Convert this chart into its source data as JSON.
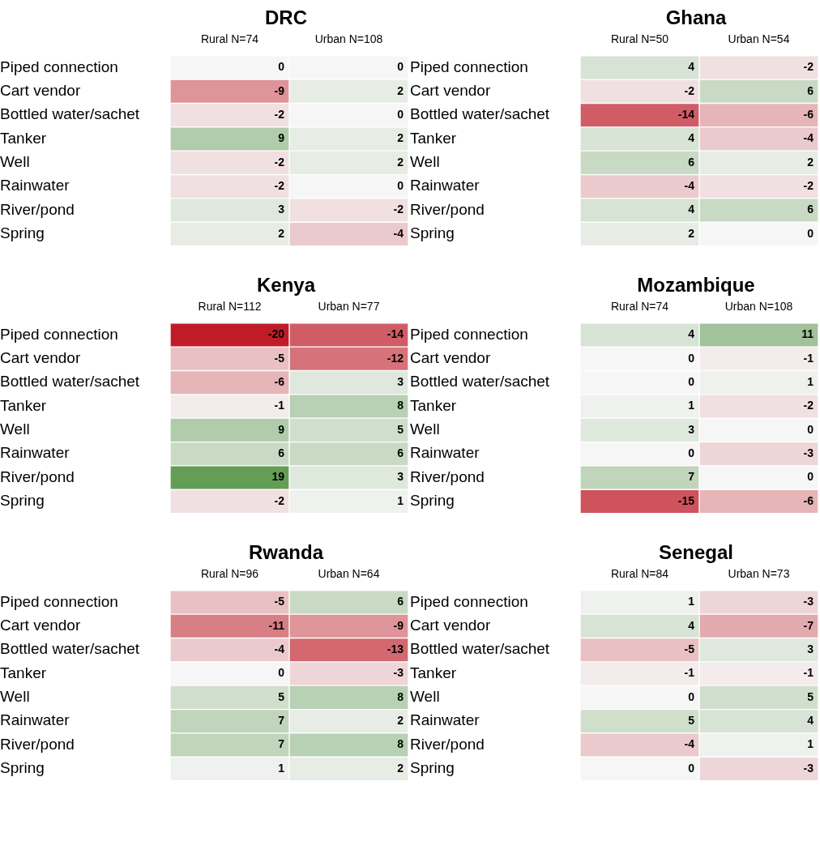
{
  "chart_data": [
    {
      "type": "heatmap",
      "title": "DRC",
      "categories": [
        "Rural N=74",
        "Urban N=108"
      ],
      "y_categories": [
        "Piped connection",
        "Cart vendor",
        "Bottled water/sachet",
        "Tanker",
        "Well",
        "Rainwater",
        "River/pond",
        "Spring"
      ],
      "cells": [
        [
          0,
          0
        ],
        [
          -9,
          2
        ],
        [
          -2,
          0
        ],
        [
          9,
          2
        ],
        [
          -2,
          2
        ],
        [
          -2,
          0
        ],
        [
          3,
          -2
        ],
        [
          2,
          -4
        ]
      ],
      "data_labels": true
    },
    {
      "type": "heatmap",
      "title": "Ghana",
      "categories": [
        "Rural N=50",
        "Urban N=54"
      ],
      "y_categories": [
        "Piped connection",
        "Cart vendor",
        "Bottled water/sachet",
        "Tanker",
        "Well",
        "Rainwater",
        "River/pond",
        "Spring"
      ],
      "cells": [
        [
          4,
          -2
        ],
        [
          -2,
          6
        ],
        [
          -14,
          -6
        ],
        [
          4,
          -4
        ],
        [
          6,
          2
        ],
        [
          -4,
          -2
        ],
        [
          4,
          6
        ],
        [
          2,
          0
        ]
      ],
      "data_labels": true
    },
    {
      "type": "heatmap",
      "title": "Kenya",
      "categories": [
        "Rural N=112",
        "Urban N=77"
      ],
      "y_categories": [
        "Piped connection",
        "Cart vendor",
        "Bottled water/sachet",
        "Tanker",
        "Well",
        "Rainwater",
        "River/pond",
        "Spring"
      ],
      "cells": [
        [
          -20,
          -14
        ],
        [
          -5,
          -12
        ],
        [
          -6,
          3
        ],
        [
          -1,
          8
        ],
        [
          9,
          5
        ],
        [
          6,
          6
        ],
        [
          19,
          3
        ],
        [
          -2,
          1
        ]
      ],
      "data_labels": true
    },
    {
      "type": "heatmap",
      "title": "Mozambique",
      "categories": [
        "Rural N=74",
        "Urban N=108"
      ],
      "y_categories": [
        "Piped connection",
        "Cart vendor",
        "Bottled water/sachet",
        "Tanker",
        "Well",
        "Rainwater",
        "River/pond",
        "Spring"
      ],
      "cells": [
        [
          4,
          11
        ],
        [
          0,
          -1
        ],
        [
          0,
          1
        ],
        [
          1,
          -2
        ],
        [
          3,
          0
        ],
        [
          0,
          -3
        ],
        [
          7,
          0
        ],
        [
          -15,
          -6
        ]
      ],
      "data_labels": true
    },
    {
      "type": "heatmap",
      "title": "Rwanda",
      "categories": [
        "Rural N=96",
        "Urban N=64"
      ],
      "y_categories": [
        "Piped connection",
        "Cart vendor",
        "Bottled water/sachet",
        "Tanker",
        "Well",
        "Rainwater",
        "River/pond",
        "Spring"
      ],
      "cells": [
        [
          -5,
          6
        ],
        [
          -11,
          -9
        ],
        [
          -4,
          -13
        ],
        [
          0,
          -3
        ],
        [
          5,
          8
        ],
        [
          7,
          2
        ],
        [
          7,
          8
        ],
        [
          1,
          2
        ]
      ],
      "data_labels": true
    },
    {
      "type": "heatmap",
      "title": "Senegal",
      "categories": [
        "Rural N=84",
        "Urban N=73"
      ],
      "y_categories": [
        "Piped connection",
        "Cart vendor",
        "Bottled water/sachet",
        "Tanker",
        "Well",
        "Rainwater",
        "River/pond",
        "Spring"
      ],
      "cells": [
        [
          1,
          -3
        ],
        [
          4,
          -7
        ],
        [
          -5,
          3
        ],
        [
          -1,
          -1
        ],
        [
          0,
          5
        ],
        [
          5,
          4
        ],
        [
          -4,
          1
        ],
        [
          0,
          -3
        ]
      ],
      "data_labels": true
    }
  ]
}
